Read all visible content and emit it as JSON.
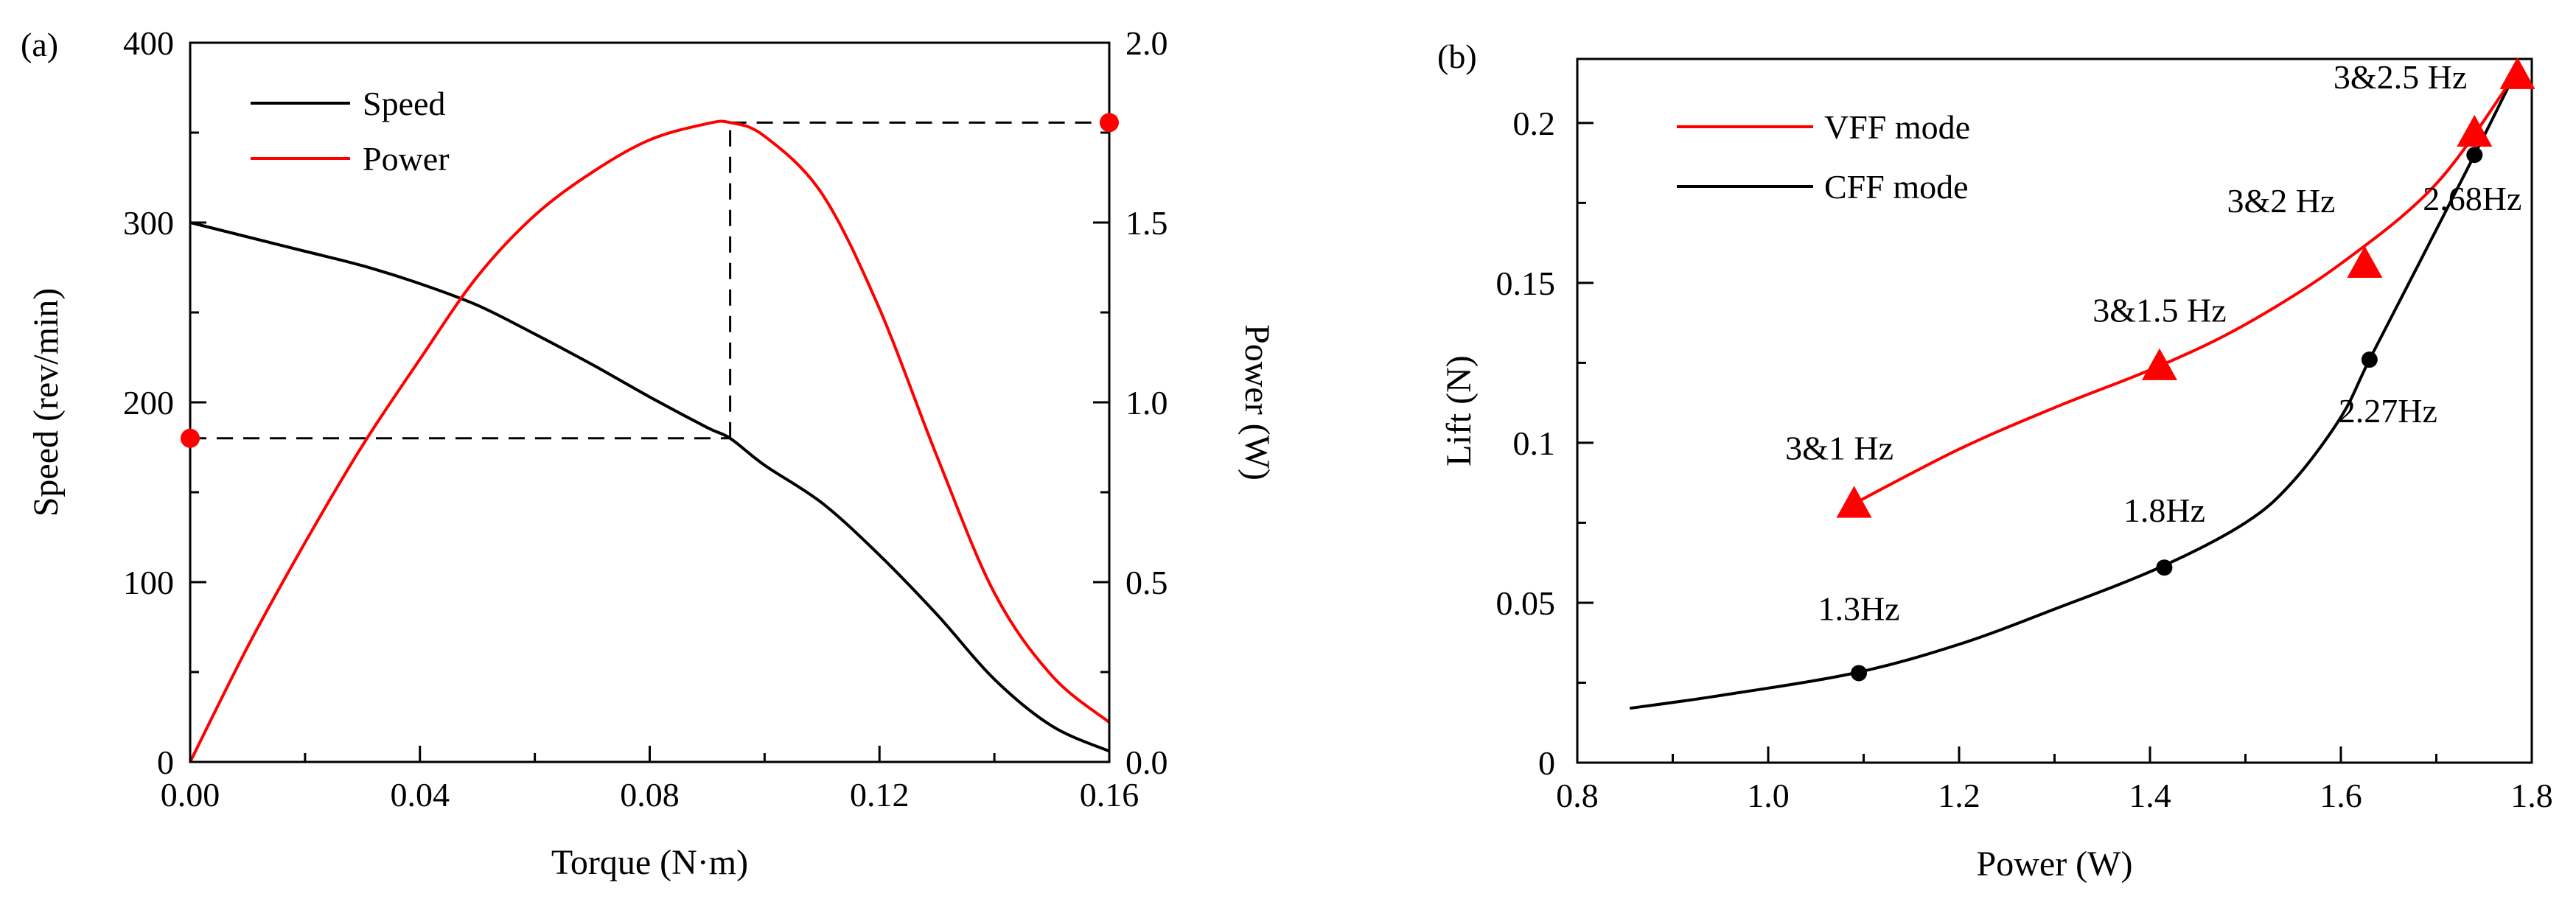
{
  "chart_data": [
    {
      "panel": "(a)",
      "type": "line",
      "xlabel": "Torque (N·m)",
      "ylabel": "Speed (rev/min)",
      "y2label": "Power (W)",
      "xlim": [
        0,
        0.16
      ],
      "ylim": [
        0,
        400
      ],
      "y2lim": [
        0,
        2.0
      ],
      "xticks": [
        "0.00",
        "0.04",
        "0.08",
        "0.12",
        "0.16"
      ],
      "yticks": [
        "0",
        "100",
        "200",
        "300",
        "400"
      ],
      "y2ticks": [
        "0.0",
        "0.5",
        "1.0",
        "1.5",
        "2.0"
      ],
      "legend": {
        "position": "top-left",
        "entries": [
          "Speed",
          "Power"
        ]
      },
      "colors": {
        "speed": "#000000",
        "power": "#ff0000",
        "marker": "#ff0000"
      },
      "series": [
        {
          "name": "Speed",
          "axis": "left",
          "x": [
            0,
            0.01,
            0.02,
            0.03,
            0.04,
            0.05,
            0.06,
            0.07,
            0.08,
            0.09,
            0.094,
            0.1,
            0.11,
            0.12,
            0.13,
            0.14,
            0.15,
            0.16
          ],
          "y": [
            300,
            292,
            284,
            276,
            266,
            254,
            238,
            221,
            203,
            186,
            180,
            165,
            144,
            115,
            82,
            46,
            20,
            6
          ]
        },
        {
          "name": "Power",
          "axis": "right",
          "x": [
            0,
            0.01,
            0.02,
            0.03,
            0.04,
            0.05,
            0.06,
            0.07,
            0.08,
            0.09,
            0.094,
            0.1,
            0.11,
            0.12,
            0.13,
            0.14,
            0.15,
            0.16
          ],
          "y": [
            0,
            0.32,
            0.61,
            0.88,
            1.12,
            1.35,
            1.52,
            1.64,
            1.73,
            1.775,
            1.778,
            1.74,
            1.58,
            1.26,
            0.85,
            0.47,
            0.24,
            0.11
          ]
        }
      ],
      "reference_point": {
        "torque": 0.094,
        "speed": 180,
        "power": 1.778
      },
      "markers": [
        {
          "axis": "left",
          "x": 0,
          "y": 180
        },
        {
          "axis": "right",
          "x": 0.16,
          "y": 1.778
        }
      ]
    },
    {
      "panel": "(b)",
      "type": "line",
      "xlabel": "Power (W)",
      "ylabel": "Lift (N)",
      "xlim": [
        0.8,
        1.8
      ],
      "ylim": [
        0,
        0.22
      ],
      "xticks": [
        "0.8",
        "1.0",
        "1.2",
        "1.4",
        "1.6",
        "1.8"
      ],
      "yticks": [
        "0",
        "0.05",
        "0.1",
        "0.15",
        "0.2"
      ],
      "legend": {
        "position": "top-left",
        "entries": [
          "VFF mode",
          "CFF mode"
        ]
      },
      "colors": {
        "vff": "#ff0000",
        "cff": "#000000"
      },
      "series": [
        {
          "name": "VFF mode",
          "marker": "triangle",
          "curve_x": [
            1.09,
            1.2,
            1.3,
            1.41,
            1.5,
            1.6,
            1.7,
            1.78
          ],
          "curve_y": [
            0.081,
            0.098,
            0.111,
            0.124,
            0.137,
            0.156,
            0.181,
            0.214
          ],
          "points": [
            {
              "x": 1.09,
              "y": 0.081,
              "label": "3&1 Hz"
            },
            {
              "x": 1.41,
              "y": 0.124,
              "label": "3&1.5 Hz"
            },
            {
              "x": 1.625,
              "y": 0.156,
              "label": "3&2 Hz"
            },
            {
              "x": 1.74,
              "y": 0.197,
              "label": "3&2.5 Hz"
            },
            {
              "x": 1.785,
              "y": 0.215,
              "label": ""
            }
          ]
        },
        {
          "name": "CFF mode",
          "marker": "circle",
          "curve_x": [
            0.855,
            0.95,
            1.09,
            1.2,
            1.3,
            1.41,
            1.5,
            1.55,
            1.6,
            1.63,
            1.68,
            1.74,
            1.78
          ],
          "curve_y": [
            0.017,
            0.021,
            0.028,
            0.037,
            0.048,
            0.061,
            0.075,
            0.088,
            0.108,
            0.126,
            0.155,
            0.19,
            0.214
          ],
          "points": [
            {
              "x": 1.095,
              "y": 0.028,
              "label": "1.3Hz"
            },
            {
              "x": 1.415,
              "y": 0.061,
              "label": "1.8Hz"
            },
            {
              "x": 1.63,
              "y": 0.126,
              "label": "2.27Hz"
            },
            {
              "x": 1.74,
              "y": 0.19,
              "label": "2.68Hz"
            }
          ]
        }
      ]
    }
  ]
}
